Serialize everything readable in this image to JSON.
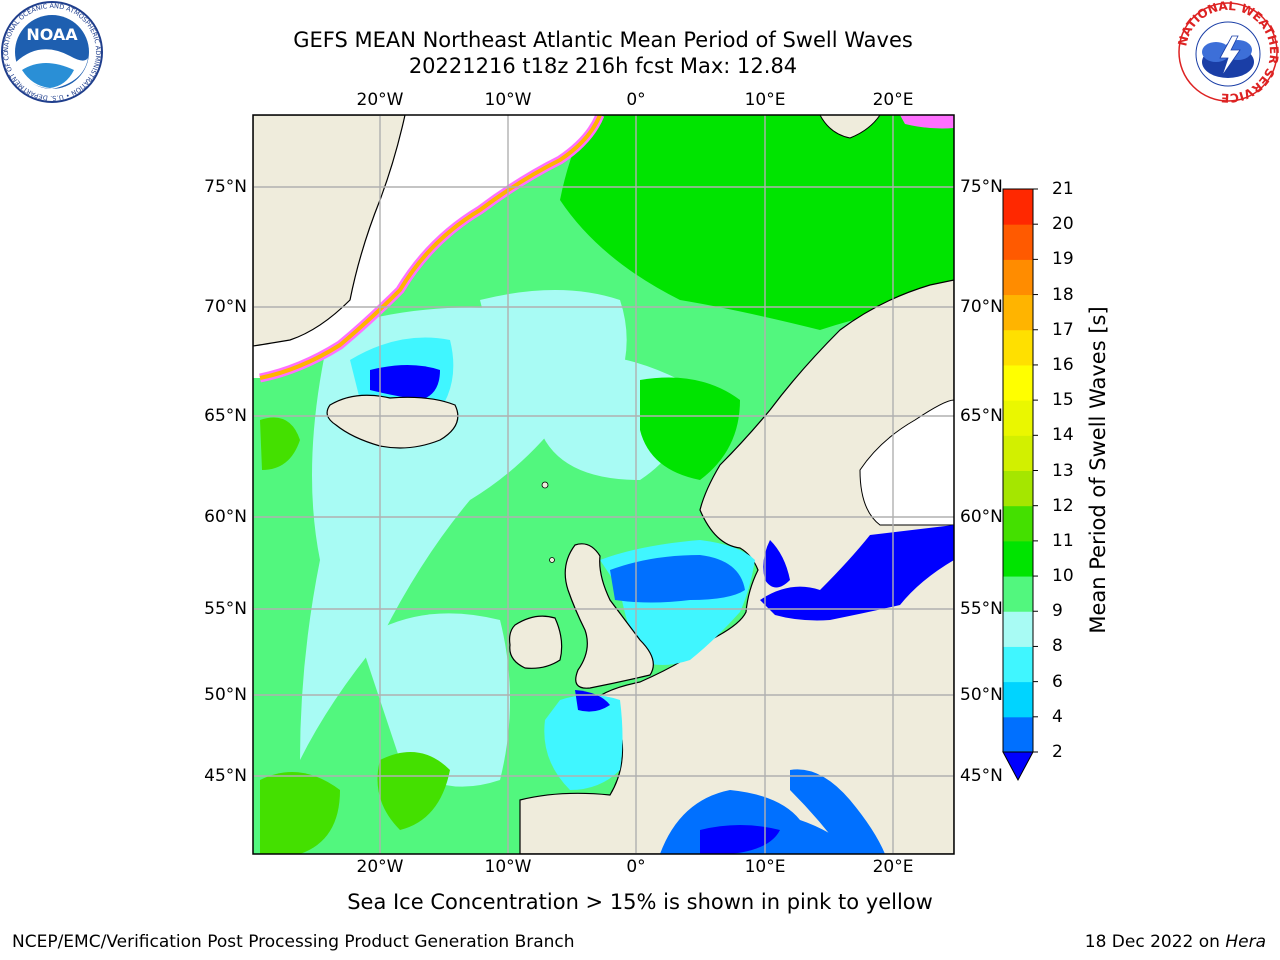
{
  "title": {
    "line1": "GEFS MEAN Northeast Atlantic Mean Period of Swell Waves",
    "line2": "20221216 t18z 216h fcst   Max: 12.84"
  },
  "logos": {
    "left": "NOAA",
    "left_ring": "NATIONAL OCEANIC AND ATMOSPHERIC ADMINISTRATION • U.S. DEPARTMENT OF COMMERCE",
    "right_ring": "NATIONAL WEATHER SERVICE"
  },
  "map": {
    "lon_labels": [
      "20°W",
      "10°W",
      "0°",
      "10°E",
      "20°E"
    ],
    "lat_labels": [
      "75°N",
      "70°N",
      "65°N",
      "60°N",
      "55°N",
      "50°N",
      "45°N"
    ],
    "colors": {
      "land": "#efecdc",
      "coast": "#000000",
      "grid": "#b0b0b0",
      "unshaded_sea": "#ffffff"
    }
  },
  "colorbar": {
    "label": "Mean Period of Swell Waves [s]",
    "ticks": [
      "2",
      "4",
      "6",
      "8",
      "9",
      "10",
      "11",
      "12",
      "13",
      "14",
      "15",
      "16",
      "17",
      "18",
      "19",
      "20",
      "21"
    ],
    "colors": [
      "#0070ff",
      "#00d4ff",
      "#40f6ff",
      "#a8fbf4",
      "#52f77e",
      "#00e400",
      "#44e000",
      "#a5e600",
      "#d2f000",
      "#eaf700",
      "#ffff00",
      "#ffe000",
      "#ffb400",
      "#ff8c00",
      "#ff5a00",
      "#ff2800"
    ],
    "under_color": "#0000ff"
  },
  "caption": "Sea Ice Concentration > 15% is shown in pink to yellow",
  "footer": {
    "left": "NCEP/EMC/Verification Post Processing Product Generation Branch",
    "right_prefix": "18 Dec 2022 on ",
    "right_host": "Hera"
  }
}
